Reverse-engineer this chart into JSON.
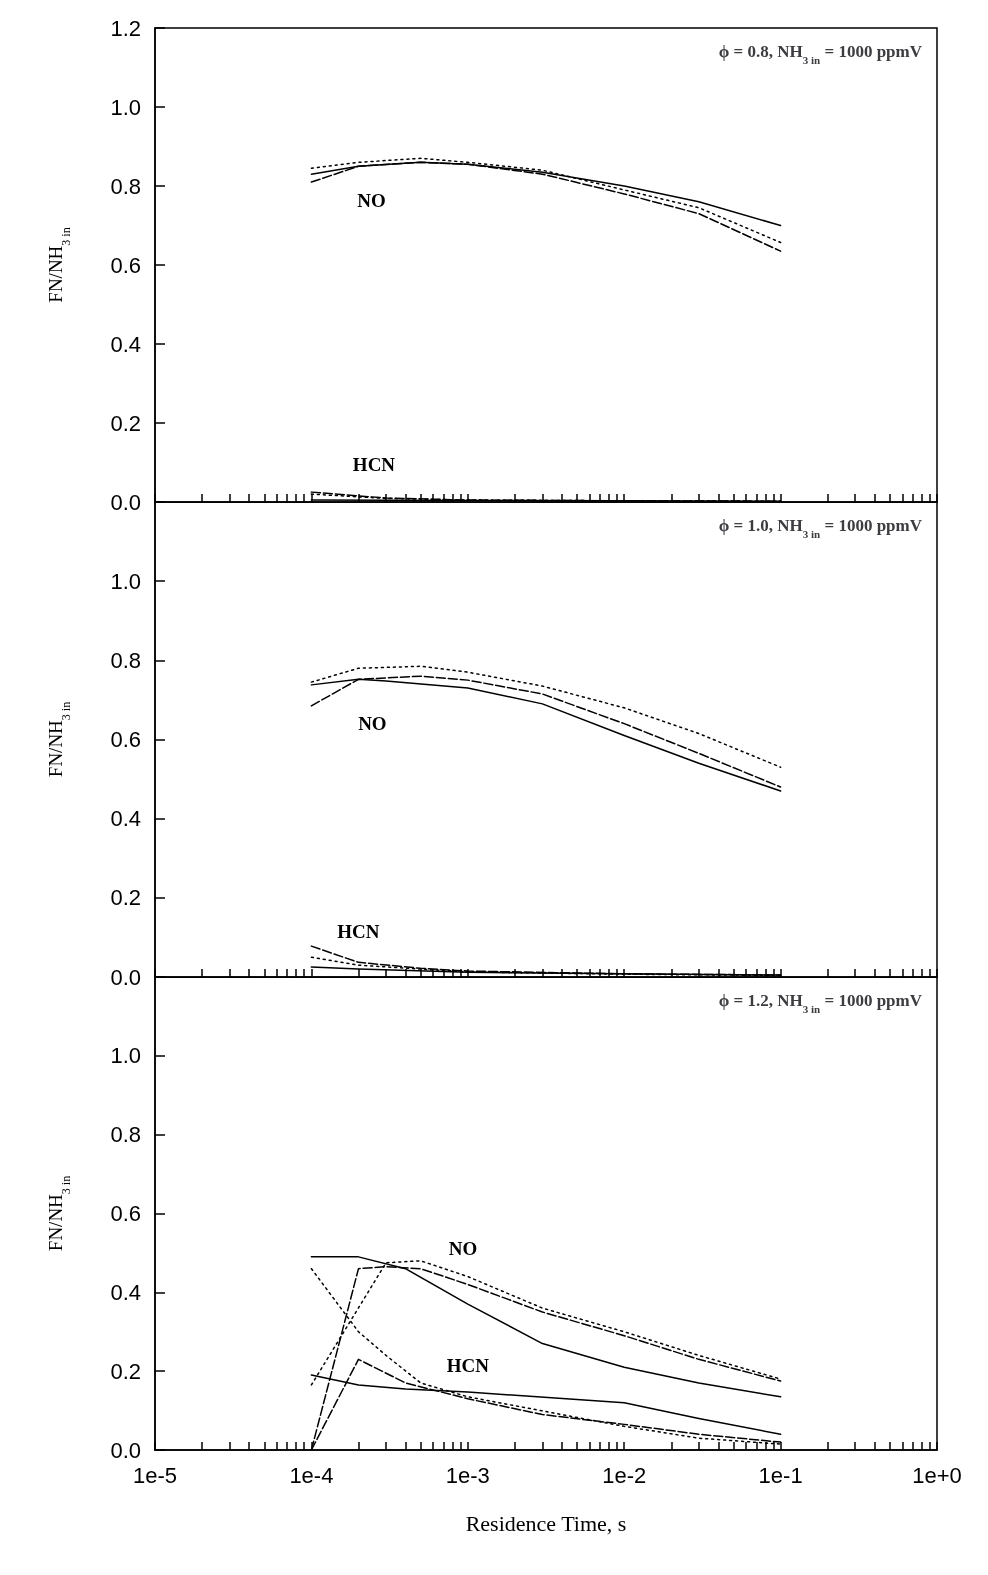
{
  "chart_data": [
    {
      "type": "line",
      "title": "ϕ = 0.8, NH$_{3 in}$ = 1000 ppmV",
      "ylabel": "FN/NH$_{3 in}$",
      "log": "x",
      "grid": false,
      "marker": "none",
      "tick_labels": "y",
      "xlim": [
        1e-05,
        1
      ],
      "xticks": [
        {
          "value": 1e-05,
          "label": null
        },
        {
          "value": 2e-05,
          "label": null
        },
        {
          "value": 3e-05,
          "label": null
        },
        {
          "value": 4e-05,
          "label": null
        },
        {
          "value": 5e-05,
          "label": null
        },
        {
          "value": 6e-05,
          "label": null
        },
        {
          "value": 7e-05,
          "label": null
        },
        {
          "value": 8e-05,
          "label": null
        },
        {
          "value": 9e-05,
          "label": null
        },
        {
          "value": 0.0001,
          "label": null
        },
        {
          "value": 0.0002,
          "label": null
        },
        {
          "value": 0.0003,
          "label": null
        },
        {
          "value": 0.0004,
          "label": null
        },
        {
          "value": 0.0005,
          "label": null
        },
        {
          "value": 0.0006,
          "label": null
        },
        {
          "value": 0.0007,
          "label": null
        },
        {
          "value": 0.0008,
          "label": null
        },
        {
          "value": 0.0009,
          "label": null
        },
        {
          "value": 0.001,
          "label": null
        },
        {
          "value": 0.002,
          "label": null
        },
        {
          "value": 0.003,
          "label": null
        },
        {
          "value": 0.004,
          "label": null
        },
        {
          "value": 0.005,
          "label": null
        },
        {
          "value": 0.006,
          "label": null
        },
        {
          "value": 0.007,
          "label": null
        },
        {
          "value": 0.008,
          "label": null
        },
        {
          "value": 0.009,
          "label": null
        },
        {
          "value": 0.01,
          "label": null
        },
        {
          "value": 0.02,
          "label": null
        },
        {
          "value": 0.03,
          "label": null
        },
        {
          "value": 0.04,
          "label": null
        },
        {
          "value": 0.05,
          "label": null
        },
        {
          "value": 0.06,
          "label": null
        },
        {
          "value": 0.07,
          "label": null
        },
        {
          "value": 0.08,
          "label": null
        },
        {
          "value": 0.09,
          "label": null
        },
        {
          "value": 0.1,
          "label": null
        },
        {
          "value": 0.2,
          "label": null
        },
        {
          "value": 0.3,
          "label": null
        },
        {
          "value": 0.4,
          "label": null
        },
        {
          "value": 0.5,
          "label": null
        },
        {
          "value": 0.6,
          "label": null
        },
        {
          "value": 0.7,
          "label": null
        },
        {
          "value": 0.8,
          "label": null
        },
        {
          "value": 0.9,
          "label": null
        },
        {
          "value": 1,
          "label": null
        }
      ],
      "ylim": [
        0,
        1.2
      ],
      "yticks": [
        {
          "value": 0,
          "label": "0.0"
        },
        {
          "value": 0.2,
          "label": "0.2"
        },
        {
          "value": 0.4,
          "label": "0.4"
        },
        {
          "value": 0.6,
          "label": "0.6"
        },
        {
          "value": 0.8,
          "label": "0.8"
        },
        {
          "value": 1,
          "label": "1.0"
        },
        {
          "value": 1.2,
          "label": "1.2"
        }
      ],
      "annotations": [
        "NO",
        "HCN"
      ],
      "series": [
        {
          "color": "#000000",
          "line_style": "solid",
          "x": [
            0.0001,
            0.0002,
            0.0005,
            0.001,
            0.003,
            0.01,
            0.03,
            0.1
          ],
          "values": [
            0.83,
            0.85,
            0.86,
            0.855,
            0.835,
            0.8,
            0.76,
            0.7
          ]
        },
        {
          "color": "#000000",
          "line_style": "dashed",
          "x": [
            0.0001,
            0.0002,
            0.0005,
            0.001,
            0.003,
            0.01,
            0.03,
            0.1
          ],
          "values": [
            0.81,
            0.85,
            0.86,
            0.855,
            0.83,
            0.78,
            0.73,
            0.635
          ]
        },
        {
          "color": "#000000",
          "line_style": "dotted",
          "x": [
            0.0001,
            0.0002,
            0.0005,
            0.001,
            0.003,
            0.01,
            0.03,
            0.1
          ],
          "values": [
            0.845,
            0.86,
            0.87,
            0.86,
            0.84,
            0.79,
            0.745,
            0.657
          ]
        },
        {
          "color": "#000000",
          "line_style": "solid",
          "x": [
            0.0001,
            0.001,
            0.01,
            0.1
          ],
          "values": [
            0.005,
            0.004,
            0.003,
            0.002
          ]
        },
        {
          "color": "#000000",
          "line_style": "dashed",
          "x": [
            0.0001,
            0.0003,
            0.001,
            0.01,
            0.1
          ],
          "values": [
            0.025,
            0.01,
            0.005,
            0.003,
            0.002
          ]
        },
        {
          "color": "#000000",
          "line_style": "dotted",
          "x": [
            0.0001,
            0.0003,
            0.001,
            0.01,
            0.1
          ],
          "values": [
            0.02,
            0.009,
            0.005,
            0.003,
            0.002
          ]
        }
      ]
    },
    {
      "type": "line",
      "title": "ϕ = 1.0, NH$_{3 in}$ = 1000 ppmV",
      "ylabel": "FN/NH$_{3 in}$",
      "log": "x",
      "grid": false,
      "marker": "none",
      "tick_labels": "y",
      "xlim": [
        1e-05,
        1
      ],
      "xticks": [
        {
          "value": 1e-05,
          "label": null
        },
        {
          "value": 2e-05,
          "label": null
        },
        {
          "value": 3e-05,
          "label": null
        },
        {
          "value": 4e-05,
          "label": null
        },
        {
          "value": 5e-05,
          "label": null
        },
        {
          "value": 6e-05,
          "label": null
        },
        {
          "value": 7e-05,
          "label": null
        },
        {
          "value": 8e-05,
          "label": null
        },
        {
          "value": 9e-05,
          "label": null
        },
        {
          "value": 0.0001,
          "label": null
        },
        {
          "value": 0.0002,
          "label": null
        },
        {
          "value": 0.0003,
          "label": null
        },
        {
          "value": 0.0004,
          "label": null
        },
        {
          "value": 0.0005,
          "label": null
        },
        {
          "value": 0.0006,
          "label": null
        },
        {
          "value": 0.0007,
          "label": null
        },
        {
          "value": 0.0008,
          "label": null
        },
        {
          "value": 0.0009,
          "label": null
        },
        {
          "value": 0.001,
          "label": null
        },
        {
          "value": 0.002,
          "label": null
        },
        {
          "value": 0.003,
          "label": null
        },
        {
          "value": 0.004,
          "label": null
        },
        {
          "value": 0.005,
          "label": null
        },
        {
          "value": 0.006,
          "label": null
        },
        {
          "value": 0.007,
          "label": null
        },
        {
          "value": 0.008,
          "label": null
        },
        {
          "value": 0.009,
          "label": null
        },
        {
          "value": 0.01,
          "label": null
        },
        {
          "value": 0.02,
          "label": null
        },
        {
          "value": 0.03,
          "label": null
        },
        {
          "value": 0.04,
          "label": null
        },
        {
          "value": 0.05,
          "label": null
        },
        {
          "value": 0.06,
          "label": null
        },
        {
          "value": 0.07,
          "label": null
        },
        {
          "value": 0.08,
          "label": null
        },
        {
          "value": 0.09,
          "label": null
        },
        {
          "value": 0.1,
          "label": null
        },
        {
          "value": 0.2,
          "label": null
        },
        {
          "value": 0.3,
          "label": null
        },
        {
          "value": 0.4,
          "label": null
        },
        {
          "value": 0.5,
          "label": null
        },
        {
          "value": 0.6,
          "label": null
        },
        {
          "value": 0.7,
          "label": null
        },
        {
          "value": 0.8,
          "label": null
        },
        {
          "value": 0.9,
          "label": null
        },
        {
          "value": 1,
          "label": null
        }
      ],
      "ylim": [
        0,
        1.2
      ],
      "yticks": [
        {
          "value": 0,
          "label": "0.0"
        },
        {
          "value": 0.2,
          "label": "0.2"
        },
        {
          "value": 0.4,
          "label": "0.4"
        },
        {
          "value": 0.6,
          "label": "0.6"
        },
        {
          "value": 0.8,
          "label": "0.8"
        },
        {
          "value": 1,
          "label": "1.0"
        },
        {
          "value": 1.2,
          "label": null
        }
      ],
      "annotations": [
        "NO",
        "HCN"
      ],
      "series": [
        {
          "color": "#000000",
          "line_style": "solid",
          "x": [
            0.0001,
            0.0002,
            0.0003,
            0.001,
            0.003,
            0.01,
            0.03,
            0.1
          ],
          "values": [
            0.738,
            0.752,
            0.748,
            0.73,
            0.69,
            0.61,
            0.54,
            0.47
          ]
        },
        {
          "color": "#000000",
          "line_style": "dashed",
          "x": [
            0.0001,
            0.0002,
            0.0005,
            0.001,
            0.003,
            0.01,
            0.03,
            0.1
          ],
          "values": [
            0.685,
            0.752,
            0.76,
            0.75,
            0.715,
            0.64,
            0.565,
            0.48
          ]
        },
        {
          "color": "#000000",
          "line_style": "dotted",
          "x": [
            0.0001,
            0.0002,
            0.0005,
            0.001,
            0.003,
            0.01,
            0.03,
            0.1
          ],
          "values": [
            0.745,
            0.78,
            0.785,
            0.77,
            0.735,
            0.68,
            0.615,
            0.53
          ]
        },
        {
          "color": "#000000",
          "line_style": "solid",
          "x": [
            0.0001,
            0.0002,
            0.001,
            0.01,
            0.1
          ],
          "values": [
            0.025,
            0.02,
            0.012,
            0.008,
            0.005
          ]
        },
        {
          "color": "#000000",
          "line_style": "dashed",
          "x": [
            0.0001,
            0.0002,
            0.0005,
            0.001,
            0.01,
            0.1
          ],
          "values": [
            0.078,
            0.037,
            0.022,
            0.015,
            0.008,
            0.005
          ]
        },
        {
          "color": "#000000",
          "line_style": "dotted",
          "x": [
            0.0001,
            0.0002,
            0.0005,
            0.001,
            0.01,
            0.1
          ],
          "values": [
            0.05,
            0.03,
            0.02,
            0.013,
            0.007,
            0.004
          ]
        }
      ]
    },
    {
      "type": "line",
      "title": "ϕ = 1.2, NH$_{3 in}$ = 1000 ppmV",
      "ylabel": "FN/NH$_{3 in}$",
      "xlabel": "Residence Time, s",
      "log": "x",
      "grid": false,
      "marker": "none",
      "xlim": [
        1e-05,
        1
      ],
      "xticks": [
        {
          "value": 1e-05,
          "label": "1e-5"
        },
        {
          "value": 2e-05,
          "label": null
        },
        {
          "value": 3e-05,
          "label": null
        },
        {
          "value": 4e-05,
          "label": null
        },
        {
          "value": 5e-05,
          "label": null
        },
        {
          "value": 6e-05,
          "label": null
        },
        {
          "value": 7e-05,
          "label": null
        },
        {
          "value": 8e-05,
          "label": null
        },
        {
          "value": 9e-05,
          "label": null
        },
        {
          "value": 0.0001,
          "label": "1e-4"
        },
        {
          "value": 0.0002,
          "label": null
        },
        {
          "value": 0.0003,
          "label": null
        },
        {
          "value": 0.0004,
          "label": null
        },
        {
          "value": 0.0005,
          "label": null
        },
        {
          "value": 0.0006,
          "label": null
        },
        {
          "value": 0.0007,
          "label": null
        },
        {
          "value": 0.0008,
          "label": null
        },
        {
          "value": 0.0009,
          "label": null
        },
        {
          "value": 0.001,
          "label": "1e-3"
        },
        {
          "value": 0.002,
          "label": null
        },
        {
          "value": 0.003,
          "label": null
        },
        {
          "value": 0.004,
          "label": null
        },
        {
          "value": 0.005,
          "label": null
        },
        {
          "value": 0.006,
          "label": null
        },
        {
          "value": 0.007,
          "label": null
        },
        {
          "value": 0.008,
          "label": null
        },
        {
          "value": 0.009,
          "label": null
        },
        {
          "value": 0.01,
          "label": "1e-2"
        },
        {
          "value": 0.02,
          "label": null
        },
        {
          "value": 0.03,
          "label": null
        },
        {
          "value": 0.04,
          "label": null
        },
        {
          "value": 0.05,
          "label": null
        },
        {
          "value": 0.06,
          "label": null
        },
        {
          "value": 0.07,
          "label": null
        },
        {
          "value": 0.08,
          "label": null
        },
        {
          "value": 0.09,
          "label": null
        },
        {
          "value": 0.1,
          "label": "1e-1"
        },
        {
          "value": 0.2,
          "label": null
        },
        {
          "value": 0.3,
          "label": null
        },
        {
          "value": 0.4,
          "label": null
        },
        {
          "value": 0.5,
          "label": null
        },
        {
          "value": 0.6,
          "label": null
        },
        {
          "value": 0.7,
          "label": null
        },
        {
          "value": 0.8,
          "label": null
        },
        {
          "value": 0.9,
          "label": null
        },
        {
          "value": 1,
          "label": "1e+0"
        }
      ],
      "ylim": [
        0,
        1.2
      ],
      "yticks": [
        {
          "value": 0,
          "label": "0.0"
        },
        {
          "value": 0.2,
          "label": "0.2"
        },
        {
          "value": 0.4,
          "label": "0.4"
        },
        {
          "value": 0.6,
          "label": "0.6"
        },
        {
          "value": 0.8,
          "label": "0.8"
        },
        {
          "value": 1,
          "label": "1.0"
        },
        {
          "value": 1.2,
          "label": null
        }
      ],
      "annotations": [
        "NO",
        "HCN"
      ],
      "series": [
        {
          "color": "#000000",
          "line_style": "solid",
          "x": [
            0.0001,
            0.0002,
            0.0004,
            0.001,
            0.003,
            0.01,
            0.03,
            0.1
          ],
          "values": [
            0.49,
            0.49,
            0.46,
            0.37,
            0.27,
            0.21,
            0.17,
            0.135
          ]
        },
        {
          "color": "#000000",
          "line_style": "dashed",
          "x": [
            0.0001,
            0.0002,
            0.0003,
            0.0005,
            0.001,
            0.003,
            0.01,
            0.03,
            0.1
          ],
          "values": [
            0,
            0.46,
            0.465,
            0.46,
            0.42,
            0.35,
            0.29,
            0.23,
            0.175
          ]
        },
        {
          "color": "#000000",
          "line_style": "dotted",
          "x": [
            0.0001,
            0.0003,
            0.0005,
            0.001,
            0.003,
            0.01,
            0.03,
            0.1
          ],
          "values": [
            0.165,
            0.475,
            0.48,
            0.44,
            0.36,
            0.3,
            0.24,
            0.18
          ]
        },
        {
          "color": "#000000",
          "line_style": "solid",
          "x": [
            0.0001,
            0.0002,
            0.0004,
            0.001,
            0.01,
            0.03,
            0.1
          ],
          "values": [
            0.19,
            0.165,
            0.155,
            0.147,
            0.12,
            0.08,
            0.04
          ]
        },
        {
          "color": "#000000",
          "line_style": "dashed",
          "x": [
            0.0001,
            0.0002,
            0.0004,
            0.001,
            0.003,
            0.01,
            0.03,
            0.1
          ],
          "values": [
            0,
            0.23,
            0.17,
            0.13,
            0.09,
            0.065,
            0.04,
            0.02
          ]
        },
        {
          "color": "#000000",
          "line_style": "dotted",
          "x": [
            0.0001,
            0.0002,
            0.0003,
            0.0005,
            0.001,
            0.01,
            0.03,
            0.1
          ],
          "values": [
            0.46,
            0.3,
            0.24,
            0.17,
            0.135,
            0.06,
            0.03,
            0.015
          ]
        }
      ]
    }
  ]
}
